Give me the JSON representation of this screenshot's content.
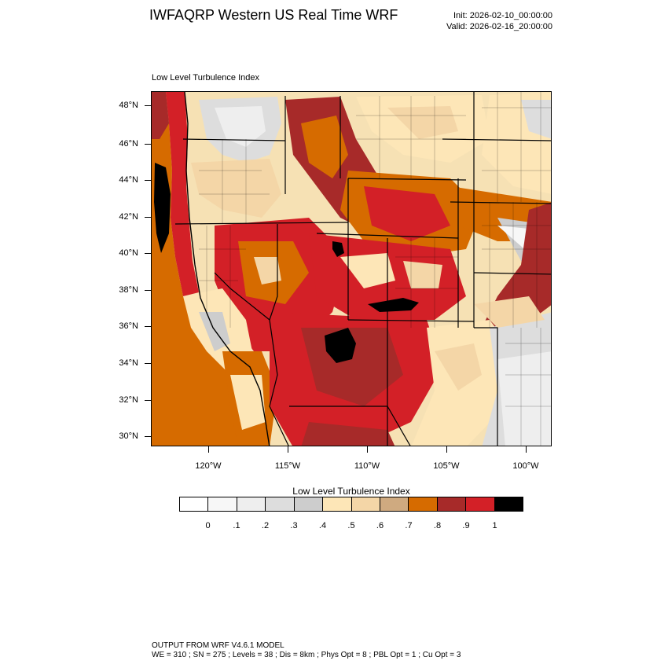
{
  "header": {
    "title": "IWFAQRP Western US Real Time WRF",
    "init": "Init: 2026-02-10_00:00:00",
    "valid": "Valid: 2026-02-16_20:00:00"
  },
  "plot": {
    "subtitle": "Low Level Turbulence Index",
    "latitude_labels": [
      "48°N",
      "46°N",
      "44°N",
      "42°N",
      "40°N",
      "38°N",
      "36°N",
      "34°N",
      "32°N",
      "30°N"
    ],
    "longitude_labels": [
      "120°W",
      "115°W",
      "110°W",
      "105°W",
      "100°W"
    ]
  },
  "colorbar": {
    "title": "Low Level Turbulence Index",
    "colors": [
      "#ffffff",
      "#f7f7f7",
      "#eeeeee",
      "#dddddd",
      "#cdcdcd",
      "#fde6b7",
      "#f4d6a7",
      "#cfaa80",
      "#d66b00",
      "#a72a29",
      "#d32027",
      "#000000"
    ],
    "labels": [
      "0",
      ".1",
      ".2",
      ".3",
      ".4",
      ".5",
      ".6",
      ".7",
      ".8",
      ".9",
      "1"
    ]
  },
  "footer": {
    "line1": "OUTPUT FROM WRF V4.6.1 MODEL",
    "line2": "WE = 310 ; SN = 275 ; Levels = 38 ; Dis = 8km ; Phys Opt = 8 ; PBL Opt = 1 ; Cu Opt = 3"
  }
}
